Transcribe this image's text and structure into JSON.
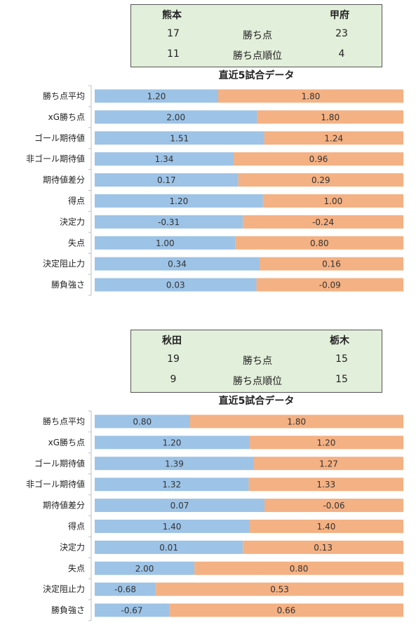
{
  "section_title": "直近5試合データ",
  "colors": {
    "home": "#9dc3e6",
    "away": "#f4b183",
    "box_bg": "#e2efda"
  },
  "matches": [
    {
      "home": {
        "name": "熊本",
        "points": "17",
        "rank": "11"
      },
      "away": {
        "name": "甲府",
        "points": "23",
        "rank": "4"
      },
      "points_label": "勝ち点",
      "rank_label": "勝ち点順位"
    },
    {
      "home": {
        "name": "秋田",
        "points": "19",
        "rank": "9"
      },
      "away": {
        "name": "栃木",
        "points": "15",
        "rank": "15"
      },
      "points_label": "勝ち点",
      "rank_label": "勝ち点順位"
    }
  ],
  "chart_data": [
    {
      "type": "bar",
      "stacked": "100%",
      "orientation": "horizontal",
      "categories": [
        "勝ち点平均",
        "xG勝ち点",
        "ゴール期待値",
        "非ゴール期待値",
        "期待値差分",
        "得点",
        "決定力",
        "失点",
        "決定阻止力",
        "勝負強さ"
      ],
      "home_labels": [
        "1.20",
        "2.00",
        "1.51",
        "1.34",
        "0.17",
        "1.20",
        "-0.31",
        "1.00",
        "0.34",
        "0.03"
      ],
      "away_labels": [
        "1.80",
        "1.80",
        "1.24",
        "0.96",
        "0.29",
        "1.00",
        "-0.24",
        "0.80",
        "0.16",
        "-0.09"
      ],
      "home_share": [
        0.4,
        0.526,
        0.549,
        0.45,
        0.465,
        0.545,
        0.48,
        0.456,
        0.534,
        0.524
      ]
    },
    {
      "type": "bar",
      "stacked": "100%",
      "orientation": "horizontal",
      "categories": [
        "勝ち点平均",
        "xG勝ち点",
        "ゴール期待値",
        "非ゴール期待値",
        "期待値差分",
        "得点",
        "決定力",
        "失点",
        "決定阻止力",
        "勝負強さ"
      ],
      "home_labels": [
        "0.80",
        "1.20",
        "1.39",
        "1.32",
        "0.07",
        "1.40",
        "0.01",
        "2.00",
        "-0.68",
        "-0.67"
      ],
      "away_labels": [
        "1.80",
        "1.20",
        "1.27",
        "1.33",
        "-0.06",
        "1.40",
        "0.13",
        "0.80",
        "0.53",
        "0.66"
      ],
      "home_share": [
        0.308,
        0.5,
        0.516,
        0.499,
        0.55,
        0.5,
        0.48,
        0.323,
        0.198,
        0.241
      ]
    }
  ]
}
